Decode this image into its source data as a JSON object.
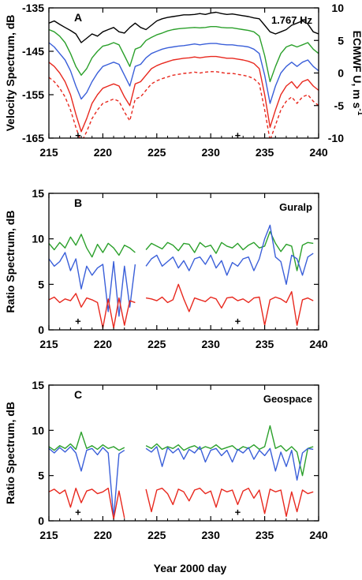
{
  "chart_data": [
    {
      "type": "line",
      "panel_label": "A",
      "annotation": "1.767 Hz",
      "xlabel": "",
      "ylabel": "Velocity Spectrum, dB",
      "y2label": "ECMWF U, m s",
      "y2label_sup": "-1",
      "xlim": [
        215,
        240
      ],
      "ylim": [
        -165,
        -135
      ],
      "y2lim": [
        -10,
        10
      ],
      "xticks": [
        "215",
        "220",
        "225",
        "230",
        "235",
        "240"
      ],
      "yticks": [
        "-165",
        "-155",
        "-145",
        "-135"
      ],
      "y2ticks": [
        "-10",
        "-5",
        "0",
        "5",
        "10"
      ],
      "markers": [
        {
          "x": 217.7,
          "y": -164.3,
          "symbol": "+"
        },
        {
          "x": 232.5,
          "y": -164.3,
          "symbol": "+"
        }
      ],
      "x": [
        215.0,
        215.5,
        216.0,
        216.5,
        217.0,
        217.5,
        218.0,
        218.5,
        219.0,
        219.5,
        220.0,
        220.5,
        221.0,
        221.5,
        222.0,
        222.5,
        223.0,
        223.5,
        224.0,
        224.5,
        225.0,
        225.5,
        226.0,
        226.5,
        227.0,
        227.5,
        228.0,
        228.5,
        229.0,
        229.5,
        230.0,
        230.5,
        231.0,
        231.5,
        232.0,
        232.5,
        233.0,
        233.5,
        234.0,
        234.5,
        235.0,
        235.5,
        236.0,
        236.5,
        237.0,
        237.5,
        238.0,
        238.5,
        239.0,
        239.5,
        240.0
      ],
      "series": [
        {
          "color": "#000000",
          "dash": "",
          "values": [
            -138.5,
            -138.0,
            -138.8,
            -139.5,
            -140.2,
            -141.0,
            -143.0,
            -142.0,
            -141.0,
            -141.5,
            -140.5,
            -140.0,
            -139.5,
            -140.5,
            -140.8,
            -139.5,
            -138.5,
            -139.5,
            -140.0,
            -139.0,
            -138.0,
            -137.5,
            -137.2,
            -137.0,
            -136.8,
            -136.6,
            -136.6,
            -136.5,
            -136.3,
            -136.5,
            -136.2,
            -136.0,
            -136.3,
            -136.5,
            -136.4,
            -136.6,
            -136.8,
            -137.0,
            -137.3,
            -137.5,
            -139.0,
            -140.5,
            -141.0,
            -140.5,
            -140.0,
            -139.0,
            -138.5,
            -138.0,
            -138.7,
            -140.5,
            -141.0
          ]
        },
        {
          "color": "#2ba02b",
          "dash": "",
          "values": [
            -140.0,
            -140.5,
            -141.5,
            -143.0,
            -145.5,
            -148.5,
            -150.5,
            -149.0,
            -146.5,
            -145.0,
            -143.8,
            -143.5,
            -143.0,
            -143.5,
            -146.0,
            -148.5,
            -144.5,
            -144.0,
            -142.5,
            -141.8,
            -141.2,
            -140.8,
            -140.3,
            -140.0,
            -139.8,
            -139.7,
            -139.6,
            -139.5,
            -139.6,
            -139.5,
            -139.3,
            -139.3,
            -139.5,
            -139.6,
            -139.6,
            -139.8,
            -140.0,
            -140.2,
            -140.5,
            -141.5,
            -146.0,
            -152.0,
            -148.5,
            -145.5,
            -144.0,
            -143.5,
            -144.0,
            -143.5,
            -143.0,
            -144.5,
            -145.5
          ]
        },
        {
          "color": "#3a5fd9",
          "dash": "",
          "values": [
            -143.0,
            -144.0,
            -145.5,
            -147.0,
            -149.5,
            -153.0,
            -156.0,
            -154.5,
            -152.0,
            -150.0,
            -148.5,
            -148.0,
            -147.5,
            -148.0,
            -150.5,
            -153.0,
            -148.5,
            -148.0,
            -146.5,
            -145.5,
            -145.0,
            -144.5,
            -144.2,
            -144.0,
            -143.8,
            -143.7,
            -143.5,
            -143.3,
            -143.5,
            -143.3,
            -143.2,
            -143.2,
            -143.4,
            -143.5,
            -143.5,
            -143.7,
            -143.8,
            -144.0,
            -144.5,
            -145.5,
            -150.5,
            -157.0,
            -153.0,
            -150.0,
            -148.5,
            -147.5,
            -148.5,
            -147.5,
            -147.0,
            -148.5,
            -149.5
          ]
        },
        {
          "color": "#e8281e",
          "dash": "",
          "values": [
            -147.5,
            -148.5,
            -150.0,
            -152.0,
            -155.0,
            -159.5,
            -163.5,
            -160.5,
            -157.0,
            -155.0,
            -153.5,
            -153.0,
            -152.5,
            -153.0,
            -155.5,
            -157.5,
            -152.5,
            -152.0,
            -150.5,
            -149.0,
            -148.3,
            -147.8,
            -147.4,
            -147.0,
            -146.8,
            -146.6,
            -146.5,
            -146.3,
            -146.5,
            -146.3,
            -146.2,
            -146.2,
            -146.4,
            -146.6,
            -146.6,
            -146.8,
            -147.0,
            -147.3,
            -147.8,
            -149.0,
            -155.0,
            -162.5,
            -158.5,
            -155.0,
            -153.0,
            -152.0,
            -153.5,
            -152.0,
            -151.5,
            -153.0,
            -154.0
          ]
        },
        {
          "color": "#e8281e",
          "dash": "4 3",
          "values": [
            -151.0,
            -152.0,
            -153.5,
            -155.5,
            -158.5,
            -162.5,
            -166.0,
            -163.5,
            -160.5,
            -158.5,
            -157.0,
            -156.5,
            -156.0,
            -156.5,
            -159.0,
            -161.0,
            -156.0,
            -155.5,
            -154.0,
            -152.5,
            -151.8,
            -151.3,
            -150.9,
            -150.5,
            -150.3,
            -150.1,
            -150.0,
            -149.8,
            -150.0,
            -149.8,
            -149.7,
            -149.7,
            -149.9,
            -150.1,
            -150.1,
            -150.3,
            -150.5,
            -150.8,
            -151.3,
            -152.5,
            -158.5,
            -165.5,
            -162.0,
            -158.5,
            -156.5,
            -155.5,
            -157.0,
            -155.5,
            -155.0,
            -156.5,
            -157.5
          ]
        }
      ]
    },
    {
      "type": "line",
      "panel_label": "B",
      "annotation": "Guralp",
      "xlabel": "",
      "ylabel": "Ratio Spectrum, dB",
      "xlim": [
        215,
        240
      ],
      "ylim": [
        0,
        15
      ],
      "xticks": [
        "215",
        "220",
        "225",
        "230",
        "235",
        "240"
      ],
      "yticks": [
        "0",
        "5",
        "10",
        "15"
      ],
      "markers": [
        {
          "x": 217.7,
          "y": 1.0,
          "symbol": "+"
        },
        {
          "x": 232.5,
          "y": 1.0,
          "symbol": "+"
        }
      ],
      "x": [
        215.0,
        215.5,
        216.0,
        216.5,
        217.0,
        217.5,
        218.0,
        218.5,
        219.0,
        219.5,
        220.0,
        220.5,
        221.0,
        221.5,
        222.0,
        222.5,
        223.0,
        223.5,
        224.0,
        224.5,
        225.0,
        225.5,
        226.0,
        226.5,
        227.0,
        227.5,
        228.0,
        228.5,
        229.0,
        229.5,
        230.0,
        230.5,
        231.0,
        231.5,
        232.0,
        232.5,
        233.0,
        233.5,
        234.0,
        234.5,
        235.0,
        235.5,
        236.0,
        236.5,
        237.0,
        237.5,
        238.0,
        238.5,
        239.0,
        239.5
      ],
      "series": [
        {
          "color": "#2ba02b",
          "dash": "",
          "values": [
            9.5,
            8.8,
            9.6,
            9.0,
            10.2,
            9.3,
            10.5,
            9.0,
            8.0,
            9.4,
            8.5,
            9.5,
            9.0,
            8.2,
            9.3,
            9.0,
            8.5,
            null,
            8.8,
            9.5,
            9.2,
            8.9,
            9.6,
            9.3,
            8.7,
            9.5,
            9.4,
            8.5,
            9.6,
            9.1,
            9.3,
            8.4,
            9.6,
            9.2,
            9.0,
            9.5,
            8.8,
            9.3,
            9.6,
            9.0,
            9.2,
            10.8,
            9.5,
            8.6,
            9.4,
            9.2,
            6.5,
            9.3,
            9.6,
            9.5
          ]
        },
        {
          "color": "#3a5fd9",
          "dash": "",
          "values": [
            7.8,
            7.0,
            7.5,
            8.5,
            6.5,
            7.8,
            4.5,
            7.0,
            6.0,
            6.8,
            7.2,
            2.0,
            7.5,
            1.5,
            7.0,
            2.5,
            7.2,
            null,
            7.0,
            7.8,
            8.2,
            7.0,
            7.5,
            8.0,
            6.8,
            7.6,
            6.5,
            7.8,
            8.0,
            7.2,
            8.2,
            6.8,
            7.6,
            6.0,
            7.4,
            7.0,
            7.8,
            8.0,
            6.5,
            7.8,
            10.0,
            11.5,
            8.0,
            7.5,
            5.0,
            8.2,
            7.8,
            6.0,
            8.0,
            8.4
          ]
        },
        {
          "color": "#e8281e",
          "dash": "",
          "values": [
            3.3,
            3.6,
            3.0,
            3.4,
            3.2,
            4.0,
            2.5,
            3.5,
            3.3,
            3.0,
            0.2,
            3.4,
            0.2,
            3.5,
            0.5,
            3.2,
            3.0,
            null,
            3.5,
            3.4,
            3.2,
            3.6,
            3.0,
            3.3,
            5.0,
            3.4,
            2.0,
            3.5,
            3.3,
            3.1,
            3.6,
            3.4,
            2.4,
            3.5,
            3.6,
            3.2,
            3.4,
            3.0,
            3.5,
            3.6,
            0.5,
            3.3,
            3.6,
            3.4,
            3.0,
            4.2,
            0.5,
            3.3,
            3.5,
            3.2
          ]
        }
      ]
    },
    {
      "type": "line",
      "panel_label": "C",
      "annotation": "Geospace",
      "xlabel": "Year 2000 day",
      "ylabel": "Ratio Spectrum, dB",
      "xlim": [
        215,
        240
      ],
      "ylim": [
        0,
        15
      ],
      "xticks": [
        "215",
        "220",
        "225",
        "230",
        "235",
        "240"
      ],
      "yticks": [
        "0",
        "5",
        "10",
        "15"
      ],
      "markers": [
        {
          "x": 217.7,
          "y": 1.0,
          "symbol": "+"
        },
        {
          "x": 232.5,
          "y": 1.0,
          "symbol": "+"
        }
      ],
      "x": [
        215.0,
        215.5,
        216.0,
        216.5,
        217.0,
        217.5,
        218.0,
        218.5,
        219.0,
        219.5,
        220.0,
        220.5,
        221.0,
        221.5,
        222.0,
        222.5,
        223.0,
        223.5,
        224.0,
        224.5,
        225.0,
        225.5,
        226.0,
        226.5,
        227.0,
        227.5,
        228.0,
        228.5,
        229.0,
        229.5,
        230.0,
        230.5,
        231.0,
        231.5,
        232.0,
        232.5,
        233.0,
        233.5,
        234.0,
        234.5,
        235.0,
        235.5,
        236.0,
        236.5,
        237.0,
        237.5,
        238.0,
        238.5,
        239.0,
        239.5
      ],
      "series": [
        {
          "color": "#2ba02b",
          "dash": "",
          "values": [
            8.2,
            7.8,
            8.3,
            8.0,
            8.5,
            7.9,
            9.8,
            8.0,
            8.3,
            7.9,
            8.4,
            8.0,
            8.2,
            7.8,
            8.1,
            null,
            8.0,
            null,
            8.3,
            8.0,
            8.5,
            7.9,
            8.2,
            8.0,
            8.4,
            7.8,
            8.1,
            8.3,
            7.9,
            8.2,
            8.0,
            8.4,
            7.9,
            8.1,
            8.3,
            7.8,
            8.2,
            8.0,
            8.4,
            7.9,
            8.2,
            10.5,
            8.0,
            8.3,
            7.7,
            8.2,
            7.6,
            5.0,
            8.0,
            8.2
          ]
        },
        {
          "color": "#3a5fd9",
          "dash": "",
          "values": [
            8.0,
            7.5,
            8.1,
            7.6,
            8.2,
            7.5,
            5.5,
            7.8,
            8.0,
            7.3,
            8.1,
            7.5,
            0.3,
            7.4,
            7.8,
            null,
            7.6,
            null,
            8.0,
            7.6,
            8.2,
            6.0,
            8.1,
            7.5,
            8.0,
            6.8,
            7.9,
            7.5,
            8.2,
            6.5,
            7.8,
            8.0,
            7.2,
            7.8,
            6.5,
            7.9,
            7.5,
            8.1,
            6.8,
            7.8,
            7.2,
            8.0,
            5.5,
            7.6,
            6.0,
            7.8,
            4.5,
            7.5,
            8.0,
            7.9
          ]
        },
        {
          "color": "#e8281e",
          "dash": "",
          "values": [
            3.2,
            3.5,
            3.0,
            3.4,
            1.5,
            3.6,
            2.0,
            3.3,
            3.5,
            3.0,
            3.2,
            3.6,
            0.2,
            3.3,
            0.3,
            null,
            3.0,
            null,
            3.5,
            1.0,
            3.4,
            3.6,
            3.0,
            1.8,
            3.5,
            3.2,
            2.2,
            3.4,
            3.6,
            3.0,
            3.3,
            1.5,
            3.5,
            3.2,
            3.4,
            1.8,
            3.3,
            3.6,
            2.5,
            3.4,
            0.8,
            3.5,
            3.2,
            3.4,
            0.5,
            3.2,
            1.0,
            3.4,
            3.0,
            3.2
          ]
        }
      ]
    }
  ]
}
